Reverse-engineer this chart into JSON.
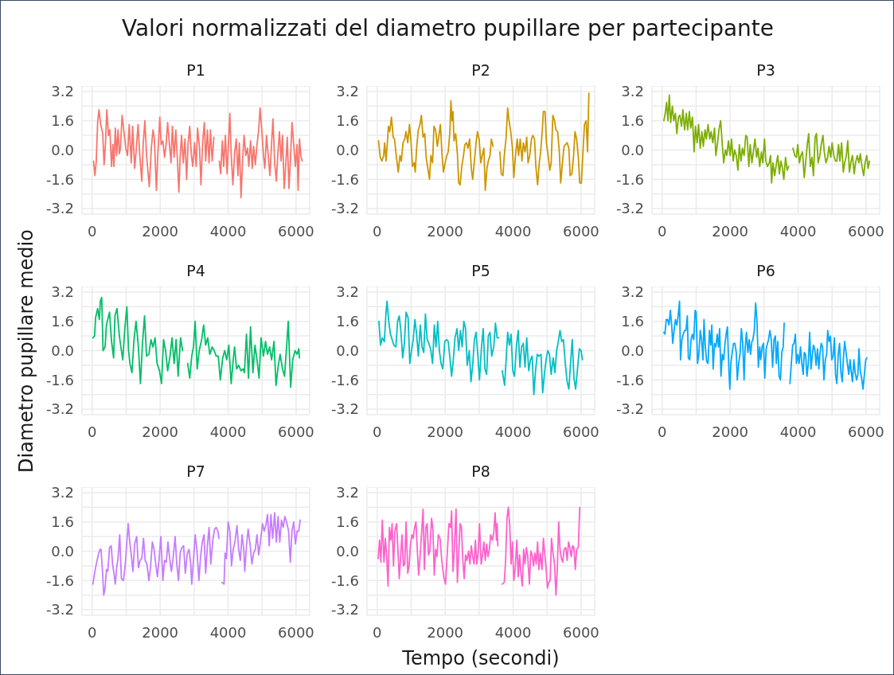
{
  "chart_data": [
    {
      "type": "line",
      "title": "P1",
      "annotations": [
        "Valori normalizzati del diametro pupillare per partecipante"
      ],
      "color": "#f8766d",
      "xlim": [
        -300,
        6400
      ],
      "ylim": [
        -3.5,
        3.5
      ],
      "xticks": [
        0,
        {
          "value": 1000,
          "label": null
        },
        2000,
        {
          "value": 3000,
          "label": null
        },
        4000,
        {
          "value": 5000,
          "label": null
        },
        6000
      ],
      "yticks": [
        -3.2,
        {
          "value": -2.4,
          "label": null
        },
        -1.6,
        {
          "value": -0.8,
          "label": null
        },
        {
          "value": 0,
          "label": "0.0"
        },
        {
          "value": 0.8,
          "label": null
        },
        1.6,
        {
          "value": 2.4,
          "label": null
        },
        3.2
      ],
      "grid": true,
      "x": [
        40,
        80,
        120,
        160,
        200,
        250,
        310,
        350,
        390,
        430,
        480,
        520,
        570,
        610,
        640,
        680,
        720,
        760,
        800,
        830,
        880,
        940,
        990,
        1040,
        1090,
        1150,
        1190,
        1250,
        1300,
        1350,
        1400,
        1460,
        1500,
        1550,
        1600,
        1680,
        1740,
        1790,
        1830,
        1890,
        1930,
        1990,
        2030,
        2080,
        2130,
        2180,
        2220,
        2270,
        2320,
        2360,
        2410,
        2460,
        2510,
        2550,
        2590,
        2630,
        2680,
        2730,
        2780,
        2820,
        2870,
        2920,
        2960,
        3010,
        3060,
        3100,
        3160,
        3200,
        3250,
        3300,
        3340,
        3390,
        3440,
        3480,
        3530,
        3580,
        3660,
        3740,
        3780,
        3830,
        3870,
        3920,
        3970,
        4010,
        4050,
        4090,
        4140,
        4190,
        4240,
        4290,
        4330,
        4380,
        4430,
        4470,
        4520,
        4570,
        4610,
        4660,
        4710,
        4750,
        4800,
        4850,
        4900,
        4940,
        4990,
        5040,
        5080,
        5130,
        5180,
        5230,
        5280,
        5320,
        5370,
        5420,
        5460,
        5510,
        5560,
        5600,
        5650,
        5700,
        5740,
        5790,
        5840,
        5880,
        5930,
        5980,
        6030,
        6060,
        6100,
        6140,
        6180
      ],
      "values": [
        -0.6,
        -1.4,
        -0.6,
        1.5,
        2.2,
        1.4,
        0.9,
        -0.8,
        0.3,
        2.2,
        0.8,
        1.1,
        -0.9,
        0.3,
        -0.9,
        1.2,
        -0.3,
        1.1,
        -0.2,
        0.1,
        1.9,
        0.9,
        0.1,
        -0.3,
        1.4,
        -0.7,
        1.3,
        -1.0,
        0.1,
        1.4,
        -0.3,
        -1.7,
        0.3,
        1.6,
        -0.3,
        -2.0,
        0.1,
        1.1,
        0.6,
        -2.2,
        -0.3,
        1.8,
        0.3,
        0.5,
        -0.4,
        0.4,
        1.5,
        0.4,
        -0.7,
        1.3,
        -0.4,
        1.1,
        -0.6,
        -2.3,
        -0.3,
        0.8,
        -0.7,
        0.6,
        -1.6,
        0.3,
        1.3,
        -0.3,
        -0.9,
        0.4,
        -0.9,
        1.2,
        0.1,
        -1.9,
        0.4,
        1.5,
        -0.6,
        1.1,
        -0.7,
        1.1,
        -0.6,
        0.7,
        null,
        -0.6,
        -1.3,
        0.5,
        -0.9,
        0.8,
        -1.3,
        0.3,
        2.0,
        -0.2,
        -1.9,
        -0.2,
        0.6,
        -1.4,
        0.4,
        -2.6,
        -0.4,
        0.8,
        -0.3,
        0.1,
        -0.9,
        0.5,
        -1.0,
        0.2,
        -0.8,
        0.3,
        1.1,
        2.3,
        1.1,
        -0.3,
        -1.0,
        0.8,
        -0.3,
        -1.4,
        0.4,
        1.7,
        -0.7,
        -1.7,
        -0.3,
        1.0,
        -0.6,
        0.8,
        -2.1,
        -0.7,
        0.7,
        -2.1,
        -0.3,
        1.5,
        0.3,
        -0.9,
        0.3,
        -2.2,
        0.6,
        -0.3,
        -0.6
      ]
    },
    {
      "type": "line",
      "title": "P2",
      "color": "#cd9600",
      "xlim": [
        -300,
        6400
      ],
      "ylim": [
        -3.5,
        3.5
      ],
      "xticks": [
        0,
        {
          "value": 1000,
          "label": null
        },
        2000,
        {
          "value": 3000,
          "label": null
        },
        4000,
        {
          "value": 5000,
          "label": null
        },
        6000
      ],
      "yticks": [
        -3.2,
        {
          "value": -2.4,
          "label": null
        },
        -1.6,
        {
          "value": -0.8,
          "label": null
        },
        {
          "value": 0,
          "label": "0.0"
        },
        {
          "value": 0.8,
          "label": null
        },
        1.6,
        {
          "value": 2.4,
          "label": null
        },
        3.2
      ],
      "grid": true,
      "x": [
        40,
        90,
        140,
        190,
        220,
        260,
        300,
        330,
        370,
        420,
        470,
        510,
        560,
        620,
        670,
        710,
        760,
        810,
        850,
        900,
        950,
        990,
        1040,
        1090,
        1120,
        1160,
        1210,
        1260,
        1300,
        1350,
        1400,
        1440,
        1490,
        1540,
        1580,
        1630,
        1670,
        1720,
        1770,
        1810,
        1860,
        1910,
        1950,
        2000,
        2050,
        2090,
        2140,
        2170,
        2200,
        2230,
        2260,
        2310,
        2360,
        2400,
        2440,
        2490,
        2540,
        2580,
        2630,
        2670,
        2720,
        2770,
        2810,
        2860,
        2910,
        2950,
        3000,
        3050,
        3090,
        3140,
        3180,
        3230,
        3270,
        3320,
        3360,
        3410,
        3510,
        3610,
        3650,
        3700,
        3740,
        3790,
        3840,
        3880,
        3930,
        3980,
        4020,
        4070,
        4120,
        4160,
        4210,
        4260,
        4300,
        4350,
        4400,
        4440,
        4490,
        4540,
        4580,
        4630,
        4670,
        4720,
        4770,
        4810,
        4860,
        4890,
        4940,
        4980,
        5030,
        5080,
        5120,
        5170,
        5220,
        5260,
        5310,
        5360,
        5400,
        5450,
        5500,
        5540,
        5590,
        5640,
        5680,
        5730,
        5780,
        5820,
        5870,
        5920,
        5960,
        6010,
        6050,
        6100,
        6150,
        6190,
        6230
      ],
      "values": [
        0.5,
        -0.4,
        -0.6,
        -0.3,
        0.4,
        -0.6,
        0.4,
        1.3,
        1.0,
        1.8,
        0.7,
        0.6,
        -0.3,
        -1.2,
        -0.3,
        -0.6,
        0.4,
        0.6,
        1.0,
        0.4,
        1.4,
        0.6,
        -0.9,
        -0.7,
        -1.2,
        0.1,
        1.1,
        1.4,
        1.9,
        0.7,
        0.9,
        -0.4,
        -1.0,
        -1.6,
        -0.3,
        -0.7,
        1.3,
        1.1,
        0.2,
        0.7,
        1.4,
        -0.3,
        -1.2,
        -0.7,
        -0.3,
        -0.1,
        1.0,
        2.7,
        1.6,
        2.1,
        0.5,
        0.9,
        -0.2,
        -1.8,
        -1.9,
        -0.9,
        -0.3,
        0.3,
        0.4,
        0.1,
        0.6,
        -1.0,
        -1.6,
        -0.6,
        0.4,
        1.0,
        0.6,
        -0.7,
        -0.3,
        0.1,
        -2.2,
        -1.0,
        -0.6,
        -0.3,
        0.6,
        0.2,
        null,
        -0.1,
        -1.3,
        -1.4,
        -0.3,
        0.6,
        2.3,
        1.6,
        1.0,
        0.1,
        -1.5,
        -0.3,
        0.6,
        -0.3,
        0.6,
        -0.6,
        0.4,
        -0.1,
        0.7,
        -0.7,
        -0.3,
        0.6,
        0.8,
        0.6,
        -0.9,
        -1.9,
        -0.7,
        -0.1,
        1.1,
        2.1,
        2.1,
        0.4,
        -0.3,
        -1.1,
        -0.7,
        1.9,
        1.6,
        1.1,
        1.0,
        -0.1,
        -1.8,
        -0.7,
        0.2,
        0.3,
        0.4,
        0.1,
        -1.4,
        -1.3,
        -0.3,
        1.0,
        0.6,
        -0.4,
        -1.8,
        -1.8,
        -0.3,
        1.4,
        1.6,
        -0.1,
        3.1
      ]
    },
    {
      "type": "line",
      "title": "P3",
      "color": "#7cae00",
      "xlim": [
        -300,
        6400
      ],
      "ylim": [
        -3.5,
        3.5
      ],
      "xticks": [
        0,
        {
          "value": 1000,
          "label": null
        },
        2000,
        {
          "value": 3000,
          "label": null
        },
        4000,
        {
          "value": 5000,
          "label": null
        },
        6000
      ],
      "yticks": [
        -3.2,
        {
          "value": -2.4,
          "label": null
        },
        -1.6,
        {
          "value": -0.8,
          "label": null
        },
        {
          "value": 0,
          "label": "0.0"
        },
        {
          "value": 0.8,
          "label": null
        },
        1.6,
        {
          "value": 2.4,
          "label": null
        },
        3.2
      ],
      "grid": true,
      "x": [
        50,
        90,
        130,
        170,
        210,
        250,
        300,
        340,
        390,
        430,
        480,
        520,
        570,
        610,
        660,
        710,
        750,
        800,
        840,
        890,
        940,
        980,
        1030,
        1070,
        1120,
        1170,
        1210,
        1260,
        1300,
        1350,
        1400,
        1440,
        1490,
        1540,
        1580,
        1630,
        1670,
        1720,
        1770,
        1810,
        1860,
        1900,
        1950,
        2000,
        2040,
        2090,
        2130,
        2180,
        2230,
        2270,
        2320,
        2360,
        2410,
        2460,
        2500,
        2550,
        2590,
        2640,
        2690,
        2730,
        2780,
        2820,
        2870,
        2920,
        2960,
        3010,
        3050,
        3100,
        3150,
        3190,
        3220,
        3260,
        3310,
        3350,
        3400,
        3450,
        3490,
        3540,
        3580,
        3630,
        3680,
        3720,
        3790,
        3850,
        3900,
        3950,
        3990,
        4040,
        4080,
        4130,
        4180,
        4220,
        4270,
        4310,
        4360,
        4410,
        4450,
        4500,
        4540,
        4590,
        4640,
        4680,
        4730,
        4770,
        4820,
        4870,
        4910,
        4960,
        5000,
        5050,
        5100,
        5140,
        5190,
        5230,
        5280,
        5330,
        5370,
        5420,
        5460,
        5510,
        5560,
        5600,
        5650,
        5690,
        5740,
        5790,
        5830,
        5880,
        5930,
        5970,
        6020,
        6060,
        6100
      ],
      "values": [
        1.6,
        2.0,
        2.6,
        1.6,
        3.0,
        1.5,
        2.4,
        1.6,
        2.0,
        0.9,
        1.8,
        1.9,
        1.3,
        2.2,
        1.1,
        2.0,
        1.1,
        2.1,
        1.2,
        1.8,
        -0.1,
        1.3,
        0.4,
        1.4,
        0.1,
        1.0,
        0.2,
        1.1,
        0.6,
        1.4,
        0.6,
        1.0,
        0.4,
        1.2,
        -0.3,
        0.4,
        1.1,
        1.6,
        0.3,
        -0.7,
        0.0,
        -0.3,
        0.5,
        -0.3,
        0.6,
        -0.6,
        0.0,
        -0.3,
        -1.1,
        0.3,
        -0.6,
        0.1,
        -0.3,
        0.8,
        0.7,
        -0.9,
        0.3,
        -0.7,
        0.0,
        0.6,
        -0.4,
        0.1,
        -0.9,
        -0.1,
        -0.7,
        0.6,
        -0.6,
        -0.9,
        -0.7,
        -0.3,
        -1.8,
        -0.7,
        -1.4,
        -0.9,
        -0.3,
        -1.3,
        -0.6,
        -1.0,
        -1.6,
        -0.4,
        -1.1,
        -0.9,
        null,
        0.1,
        -0.3,
        -0.4,
        0.3,
        -0.7,
        -0.3,
        -0.1,
        -1.5,
        -0.7,
        0.3,
        0.9,
        -0.9,
        -0.4,
        -1.4,
        0.7,
        0.9,
        -0.7,
        -0.3,
        0.3,
        0.8,
        -0.1,
        -0.7,
        -0.4,
        0.2,
        -0.4,
        0.4,
        -0.3,
        -0.6,
        -0.6,
        0.3,
        -0.6,
        0.4,
        -1.2,
        -0.7,
        -0.3,
        0.5,
        -1.2,
        -0.6,
        -0.3,
        -1.3,
        -0.7,
        -0.3,
        -0.7,
        -0.2,
        -0.9,
        -1.4,
        -0.7,
        -0.3,
        -1.0,
        -0.6
      ]
    },
    {
      "type": "line",
      "title": "P4",
      "ylabel": "Diametro pupillare medio",
      "color": "#00be67",
      "xlim": [
        -300,
        6400
      ],
      "ylim": [
        -3.5,
        3.5
      ],
      "xticks": [
        0,
        {
          "value": 1000,
          "label": null
        },
        2000,
        {
          "value": 3000,
          "label": null
        },
        4000,
        {
          "value": 5000,
          "label": null
        },
        6000
      ],
      "yticks": [
        -3.2,
        {
          "value": -2.4,
          "label": null
        },
        -1.6,
        {
          "value": -0.8,
          "label": null
        },
        {
          "value": 0,
          "label": "0.0"
        },
        {
          "value": 0.8,
          "label": null
        },
        1.6,
        {
          "value": 2.4,
          "label": null
        },
        3.2
      ],
      "grid": true,
      "x": [
        20,
        70,
        100,
        160,
        210,
        240,
        280,
        320,
        380,
        420,
        470,
        510,
        570,
        630,
        670,
        730,
        800,
        860,
        900,
        960,
        1020,
        1070,
        1110,
        1170,
        1230,
        1290,
        1360,
        1420,
        1480,
        1540,
        1600,
        1670,
        1730,
        1790,
        1850,
        1910,
        1980,
        2040,
        2100,
        2160,
        2220,
        2290,
        2350,
        2410,
        2470,
        2530,
        2600,
        2660,
        2740,
        2810,
        2870,
        2930,
        2980,
        3030,
        3090,
        3150,
        3220,
        3280,
        3340,
        3400,
        3460,
        3530,
        3590,
        3650,
        3710,
        3770,
        3840,
        3900,
        3960,
        4020,
        4090,
        4150,
        4190,
        4250,
        4310,
        4380,
        4440,
        4480,
        4540,
        4600,
        4660,
        4730,
        4790,
        4850,
        4910,
        4970,
        5040,
        5100,
        5160,
        5220,
        5280,
        5350,
        5410,
        5470,
        5530,
        5600,
        5660,
        5720,
        5770,
        5840,
        5900,
        5970,
        6030,
        6080,
        6100
      ],
      "values": [
        0.7,
        0.8,
        1.8,
        2.3,
        1.7,
        2.7,
        2.9,
        0.0,
        0.2,
        1.4,
        1.8,
        2.1,
        0.5,
        -0.4,
        1.9,
        2.3,
        0.8,
        0.0,
        -0.5,
        1.2,
        2.4,
        0.0,
        -0.7,
        -1.2,
        0.6,
        1.6,
        0.2,
        -1.8,
        0.4,
        1.9,
        -0.3,
        -0.2,
        0.6,
        0.2,
        0.7,
        -0.7,
        -1.1,
        -1.8,
        0.6,
        0.0,
        -1.1,
        -0.3,
        0.7,
        -0.7,
        0.6,
        -1.4,
        0.7,
        0.0,
        null,
        -0.7,
        -1.5,
        -0.3,
        0.2,
        1.6,
        -1.0,
        0.0,
        0.6,
        1.4,
        0.3,
        0.7,
        -0.2,
        0.2,
        0.0,
        -0.3,
        -0.3,
        -1.6,
        -0.4,
        0.0,
        -0.5,
        0.3,
        -1.8,
        -0.5,
        0.2,
        -1.0,
        -0.8,
        -1.1,
        -1.0,
        -1.2,
        0.9,
        -1.5,
        1.3,
        -1.2,
        0.3,
        -0.5,
        -1.5,
        0.7,
        -0.3,
        0.5,
        -0.2,
        0.2,
        -0.5,
        0.5,
        -1.9,
        -0.9,
        -0.2,
        -1.0,
        -1.4,
        0.2,
        1.6,
        -2.0,
        -0.5,
        0.0,
        -0.2,
        0.1,
        -0.4
      ]
    },
    {
      "type": "line",
      "title": "P5",
      "color": "#00bfc4",
      "xlim": [
        -300,
        6400
      ],
      "ylim": [
        -3.5,
        3.5
      ],
      "xticks": [
        0,
        {
          "value": 1000,
          "label": null
        },
        2000,
        {
          "value": 3000,
          "label": null
        },
        4000,
        {
          "value": 5000,
          "label": null
        },
        6000
      ],
      "yticks": [
        -3.2,
        {
          "value": -2.4,
          "label": null
        },
        -1.6,
        {
          "value": -0.8,
          "label": null
        },
        {
          "value": 0,
          "label": "0.0"
        },
        {
          "value": 0.8,
          "label": null
        },
        1.6,
        {
          "value": 2.4,
          "label": null
        },
        3.2
      ],
      "grid": true,
      "x": [
        50,
        100,
        150,
        210,
        260,
        290,
        340,
        390,
        440,
        490,
        550,
        600,
        650,
        700,
        750,
        800,
        850,
        910,
        960,
        1010,
        1060,
        1110,
        1160,
        1210,
        1270,
        1320,
        1370,
        1420,
        1470,
        1520,
        1570,
        1630,
        1680,
        1730,
        1780,
        1830,
        1880,
        1930,
        1990,
        2040,
        2090,
        2140,
        2190,
        2240,
        2290,
        2350,
        2400,
        2450,
        2500,
        2550,
        2600,
        2650,
        2710,
        2760,
        2810,
        2860,
        2910,
        2960,
        3010,
        3070,
        3120,
        3170,
        3220,
        3270,
        3320,
        3370,
        3430,
        3480,
        3530,
        3580,
        3630,
        3680,
        3750,
        3800,
        3840,
        3890,
        3940,
        3990,
        4040,
        4100,
        4150,
        4200,
        4250,
        4300,
        4350,
        4400,
        4460,
        4510,
        4560,
        4610,
        4660,
        4710,
        4760,
        4820,
        4870,
        4920,
        4970,
        5020,
        5070,
        5120,
        5180,
        5230,
        5280,
        5330,
        5380,
        5430,
        5480,
        5540,
        5590,
        5640,
        5690,
        5740,
        5790,
        5840,
        5900,
        5950,
        6000,
        6040
      ],
      "values": [
        1.6,
        0.3,
        0.7,
        0.5,
        2.1,
        2.7,
        1.6,
        0.9,
        0.6,
        0.3,
        0.2,
        1.6,
        1.9,
        1.0,
        -0.4,
        0.4,
        2.1,
        1.8,
        -0.7,
        0.0,
        0.6,
        1.7,
        0.9,
        -0.3,
        1.4,
        0.2,
        -0.1,
        2.0,
        0.6,
        0.4,
        0.1,
        -0.7,
        1.4,
        0.2,
        1.6,
        0.0,
        -0.7,
        -1.0,
        0.5,
        0.6,
        0.5,
        -0.4,
        -1.4,
        -0.5,
        0.7,
        1.2,
        0.0,
        1.1,
        0.2,
        1.6,
        1.2,
        -0.8,
        0.0,
        -1.7,
        -0.8,
        0.6,
        1.0,
        -0.2,
        -1.6,
        0.2,
        1.2,
        -1.0,
        -1.3,
        0.8,
        1.0,
        -0.3,
        0.2,
        1.5,
        0.7,
        0.7,
        null,
        -1.1,
        -1.9,
        -0.3,
        1.0,
        0.3,
        0.9,
        -1.1,
        -1.4,
        0.3,
        1.1,
        -0.9,
        0.2,
        0.4,
        -0.9,
        0.7,
        -1.1,
        -0.5,
        -0.3,
        -2.4,
        -1.1,
        -0.2,
        -0.3,
        -0.2,
        -2.3,
        -1.3,
        -0.5,
        0.0,
        -0.2,
        -1.3,
        -0.4,
        -1.2,
        0.0,
        0.5,
        1.1,
        0.5,
        0.6,
        -0.8,
        -1.7,
        -2.1,
        -0.7,
        0.6,
        -1.5,
        -2.1,
        -0.9,
        0.1,
        0.0,
        -0.5
      ]
    },
    {
      "type": "line",
      "title": "P6",
      "color": "#00a9ff",
      "xlim": [
        -300,
        6400
      ],
      "ylim": [
        -3.5,
        3.5
      ],
      "xticks": [
        0,
        {
          "value": 1000,
          "label": null
        },
        2000,
        {
          "value": 3000,
          "label": null
        },
        4000,
        {
          "value": 5000,
          "label": null
        },
        6000
      ],
      "yticks": [
        -3.2,
        {
          "value": -2.4,
          "label": null
        },
        -1.6,
        {
          "value": -0.8,
          "label": null
        },
        {
          "value": 0,
          "label": "0.0"
        },
        {
          "value": 0.8,
          "label": null
        },
        1.6,
        {
          "value": 2.4,
          "label": null
        },
        3.2
      ],
      "grid": true,
      "x": [
        50,
        80,
        120,
        160,
        200,
        240,
        280,
        310,
        350,
        390,
        430,
        470,
        510,
        540,
        580,
        620,
        660,
        700,
        740,
        770,
        810,
        850,
        890,
        930,
        970,
        1000,
        1040,
        1080,
        1120,
        1160,
        1200,
        1230,
        1270,
        1310,
        1350,
        1390,
        1430,
        1460,
        1500,
        1540,
        1580,
        1620,
        1660,
        1690,
        1730,
        1770,
        1810,
        1850,
        1890,
        1920,
        1960,
        1990,
        2020,
        2060,
        2100,
        2140,
        2180,
        2210,
        2250,
        2290,
        2330,
        2370,
        2410,
        2440,
        2480,
        2520,
        2560,
        2600,
        2640,
        2670,
        2710,
        2750,
        2790,
        2830,
        2870,
        2900,
        2940,
        2980,
        3020,
        3060,
        3100,
        3130,
        3170,
        3210,
        3250,
        3290,
        3330,
        3360,
        3400,
        3440,
        3480,
        3520,
        3560,
        3590,
        3680,
        3760,
        3800,
        3840,
        3880,
        3920,
        3950,
        3990,
        4030,
        4070,
        4110,
        4150,
        4180,
        4220,
        4260,
        4300,
        4340,
        4380,
        4410,
        4450,
        4490,
        4530,
        4570,
        4610,
        4640,
        4680,
        4720,
        4760,
        4800,
        4840,
        4870,
        4910,
        4950,
        4990,
        5030,
        5070,
        5100,
        5140,
        5180,
        5220,
        5260,
        5300,
        5330,
        5370,
        5410,
        5450,
        5490,
        5530,
        5560,
        5600,
        5640,
        5680,
        5720,
        5760,
        5790,
        5830,
        5870,
        5910,
        5950,
        5990,
        6020
      ],
      "values": [
        1.0,
        0.9,
        1.7,
        1.7,
        1.4,
        2.2,
        1.4,
        0.4,
        1.1,
        1.7,
        1.4,
        1.9,
        2.7,
        -0.5,
        0.6,
        0.9,
        1.1,
        1.1,
        1.9,
        -0.4,
        -0.5,
        0.6,
        0.9,
        0.6,
        2.2,
        2.1,
        -0.7,
        -0.2,
        1.1,
        0.6,
        -0.5,
        1.7,
        0.2,
        -0.6,
        -0.7,
        1.1,
        0.3,
        1.4,
        -1.0,
        0.4,
        0.2,
        0.9,
        0.2,
        1.2,
        -1.4,
        -0.2,
        -0.5,
        0.4,
        1.0,
        1.3,
        -0.9,
        -2.1,
        -0.7,
        -0.1,
        0.4,
        0.4,
        -0.1,
        -1.6,
        -0.7,
        -0.2,
        1.2,
        0.4,
        -1.6,
        0.1,
        1.0,
        -0.1,
        0.6,
        -0.2,
        0.5,
        0.6,
        1.1,
        2.6,
        1.6,
        -0.9,
        0.2,
        -0.5,
        0.2,
        0.4,
        -1.5,
        0.1,
        0.4,
        0.6,
        1.1,
        0.6,
        -0.9,
        0.6,
        0.8,
        -0.7,
        0.5,
        -1.4,
        -1.6,
        -0.1,
        0.2,
        1.5,
        null,
        -1.8,
        -0.7,
        0.3,
        0.4,
        0.9,
        -0.7,
        -0.2,
        -0.7,
        0.2,
        -0.7,
        -1.3,
        -0.1,
        -0.2,
        -1.4,
        -0.7,
        1.0,
        -1.0,
        -0.4,
        0.3,
        0.1,
        -0.8,
        0.1,
        -1.0,
        -0.2,
        0.4,
        0.2,
        -1.6,
        -0.5,
        -0.2,
        1.1,
        0.5,
        0.8,
        -0.5,
        -0.3,
        0.7,
        -1.3,
        -1.8,
        -0.2,
        0.4,
        -1.2,
        -1.7,
        -0.5,
        0.5,
        -0.1,
        -0.7,
        -1.3,
        -0.5,
        -1.1,
        -1.7,
        -0.5,
        -1.2,
        -1.6,
        -1.3,
        0.1,
        -1.1,
        -1.5,
        -2.1,
        -1.3,
        -0.5,
        -0.4
      ]
    },
    {
      "type": "line",
      "title": "P7",
      "color": "#c77cff",
      "xlim": [
        -300,
        6400
      ],
      "ylim": [
        -3.5,
        3.5
      ],
      "xticks": [
        0,
        {
          "value": 1000,
          "label": null
        },
        2000,
        {
          "value": 3000,
          "label": null
        },
        4000,
        {
          "value": 5000,
          "label": null
        },
        6000
      ],
      "yticks": [
        -3.2,
        {
          "value": -2.4,
          "label": null
        },
        -1.6,
        {
          "value": -0.8,
          "label": null
        },
        {
          "value": 0,
          "label": "0.0"
        },
        {
          "value": 0.8,
          "label": null
        },
        1.6,
        {
          "value": 2.4,
          "label": null
        },
        3.2
      ],
      "grid": true,
      "x": [
        20,
        70,
        120,
        180,
        230,
        260,
        300,
        340,
        380,
        420,
        460,
        510,
        560,
        600,
        640,
        680,
        720,
        760,
        810,
        860,
        920,
        970,
        1020,
        1060,
        1100,
        1150,
        1200,
        1250,
        1310,
        1360,
        1410,
        1460,
        1510,
        1560,
        1610,
        1670,
        1720,
        1770,
        1820,
        1870,
        1920,
        1970,
        2020,
        2080,
        2130,
        2180,
        2230,
        2280,
        2330,
        2380,
        2440,
        2490,
        2540,
        2590,
        2640,
        2690,
        2740,
        2800,
        2850,
        2900,
        2930,
        2980,
        3030,
        3080,
        3140,
        3190,
        3240,
        3290,
        3340,
        3390,
        3440,
        3490,
        3550,
        3600,
        3650,
        3700,
        3730,
        3780,
        3820,
        3880,
        3910,
        3950,
        4000,
        4050,
        4100,
        4150,
        4200,
        4260,
        4310,
        4360,
        4410,
        4460,
        4490,
        4540,
        4590,
        4650,
        4700,
        4750,
        4800,
        4850,
        4900,
        4950,
        5010,
        5060,
        5110,
        5160,
        5210,
        5260,
        5310,
        5370,
        5420,
        5470,
        5520,
        5570,
        5620,
        5670,
        5720,
        5780,
        5830,
        5880,
        5930,
        5980,
        6030,
        6080,
        6120
      ],
      "values": [
        -1.8,
        -1.2,
        -0.7,
        -0.2,
        0.1,
        0.1,
        -1.0,
        -2.4,
        -2.0,
        -1.0,
        -1.1,
        0.2,
        0.3,
        -0.7,
        -1.2,
        -1.8,
        -0.9,
        -0.4,
        0.9,
        -1.5,
        -1.6,
        -0.8,
        0.5,
        1.5,
        0.6,
        -0.2,
        -1.1,
        0.4,
        0.8,
        -0.9,
        -0.5,
        -0.4,
        0.7,
        -0.5,
        -0.7,
        -1.6,
        -0.8,
        0.5,
        0.1,
        -0.7,
        -1.4,
        -0.4,
        0.8,
        -1.6,
        -0.5,
        -0.6,
        0.5,
        -0.4,
        -1.1,
        -0.4,
        0.8,
        -0.7,
        -1.6,
        -0.1,
        0.2,
        0.3,
        -1.2,
        -0.1,
        0.1,
        -0.7,
        -1.8,
        -0.5,
        0.9,
        0.1,
        -1.6,
        -0.3,
        0.5,
        0.9,
        -1.2,
        0.3,
        1.3,
        -0.7,
        0.6,
        1.2,
        1.3,
        1.1,
        0.7,
        null,
        -1.7,
        -1.8,
        -0.1,
        -0.4,
        1.6,
        1.1,
        -0.8,
        0.1,
        0.5,
        1.4,
        0.1,
        -0.5,
        0.9,
        0.1,
        -1.1,
        0.3,
        1.2,
        0.3,
        -0.7,
        -0.1,
        0.1,
        0.9,
        -0.2,
        0.5,
        1.5,
        1.1,
        1.4,
        2.0,
        0.3,
        2.0,
        0.7,
        2.1,
        0.5,
        1.9,
        0.5,
        1.7,
        1.3,
        1.9,
        1.6,
        1.1,
        -0.6,
        1.1,
        1.6,
        0.4,
        1.1,
        1.1,
        1.7
      ]
    },
    {
      "type": "line",
      "title": "P8",
      "xlabel": "Tempo (secondi)",
      "color": "#ff61cc",
      "xlim": [
        -300,
        6400
      ],
      "ylim": [
        -3.5,
        3.5
      ],
      "xticks": [
        0,
        {
          "value": 1000,
          "label": null
        },
        2000,
        {
          "value": 3000,
          "label": null
        },
        4000,
        {
          "value": 5000,
          "label": null
        },
        6000
      ],
      "yticks": [
        -3.2,
        {
          "value": -2.4,
          "label": null
        },
        -1.6,
        {
          "value": -0.8,
          "label": null
        },
        {
          "value": 0,
          "label": "0.0"
        },
        {
          "value": 0.8,
          "label": null
        },
        1.6,
        {
          "value": 2.4,
          "label": null
        },
        3.2
      ],
      "grid": true,
      "x": [
        30,
        70,
        110,
        150,
        200,
        240,
        280,
        320,
        360,
        400,
        440,
        480,
        520,
        570,
        610,
        650,
        690,
        730,
        770,
        810,
        850,
        900,
        940,
        980,
        1020,
        1060,
        1100,
        1140,
        1180,
        1220,
        1270,
        1310,
        1350,
        1390,
        1430,
        1470,
        1510,
        1550,
        1600,
        1640,
        1680,
        1720,
        1760,
        1800,
        1850,
        1900,
        1960,
        2010,
        2060,
        2110,
        2160,
        2190,
        2230,
        2270,
        2320,
        2360,
        2400,
        2440,
        2480,
        2520,
        2560,
        2600,
        2640,
        2690,
        2730,
        2770,
        2810,
        2850,
        2890,
        2930,
        2970,
        3010,
        3060,
        3100,
        3140,
        3180,
        3220,
        3260,
        3300,
        3340,
        3390,
        3430,
        3470,
        3510,
        3530,
        3550,
        3620,
        3680,
        3740,
        3780,
        3820,
        3860,
        3900,
        3940,
        3980,
        4020,
        4060,
        4110,
        4150,
        4190,
        4230,
        4270,
        4310,
        4350,
        4390,
        4430,
        4480,
        4520,
        4560,
        4600,
        4640,
        4680,
        4720,
        4760,
        4800,
        4850,
        4890,
        4930,
        4970,
        5010,
        5050,
        5090,
        5130,
        5180,
        5220,
        5260,
        5300,
        5340,
        5380,
        5420,
        5460,
        5500,
        5550,
        5590,
        5630,
        5670,
        5710,
        5750,
        5790,
        5830,
        5870,
        5920,
        5960
      ],
      "values": [
        -0.4,
        0.6,
        -0.6,
        1.7,
        -0.6,
        0.7,
        -0.3,
        -1.9,
        1.3,
        0.6,
        1.5,
        -0.8,
        1.1,
        1.5,
        0.1,
        -1.5,
        -0.3,
        0.9,
        -0.8,
        -0.7,
        1.6,
        -1.2,
        -0.8,
        0.4,
        0.9,
        0.7,
        1.3,
        1.6,
        0.1,
        -1.3,
        -0.1,
        1.1,
        2.3,
        -1.0,
        1.3,
        1.5,
        -0.2,
        0.0,
        1.8,
        1.2,
        -1.3,
        0.1,
        -0.3,
        0.9,
        0.7,
        -0.5,
        -1.4,
        -1.8,
        -0.2,
        1.5,
        1.3,
        2.2,
        -1.1,
        0.1,
        2.3,
        -1.7,
        -0.1,
        1.5,
        1.3,
        -0.5,
        -1.5,
        -0.2,
        -0.5,
        0.0,
        -0.7,
        0.3,
        -0.3,
        -0.7,
        0.6,
        -0.7,
        -0.1,
        1.5,
        -0.7,
        -0.2,
        0.5,
        -0.5,
        0.4,
        -0.3,
        0.1,
        0.9,
        0.6,
        1.0,
        2.1,
        0.6,
        1.5,
        0.3,
        null,
        -1.8,
        -1.7,
        -0.5,
        1.8,
        2.4,
        1.4,
        -0.7,
        0.5,
        -1.6,
        -1.0,
        0.6,
        -1.4,
        -0.2,
        -1.2,
        -1.9,
        0.1,
        -0.7,
        0.2,
        -0.3,
        -1.8,
        0.0,
        -0.2,
        -0.8,
        -0.1,
        -0.7,
        0.5,
        -1.0,
        -0.1,
        -1.0,
        0.7,
        -0.1,
        -0.9,
        -2.0,
        -1.7,
        -1.6,
        0.7,
        -0.2,
        -0.7,
        -2.4,
        -1.0,
        1.6,
        0.1,
        -0.4,
        -0.6,
        0.1,
        0.2,
        -0.5,
        0.5,
        0.2,
        -0.3,
        0.3,
        0.2,
        -1.0,
        0.1,
        0.2,
        2.4
      ]
    }
  ]
}
